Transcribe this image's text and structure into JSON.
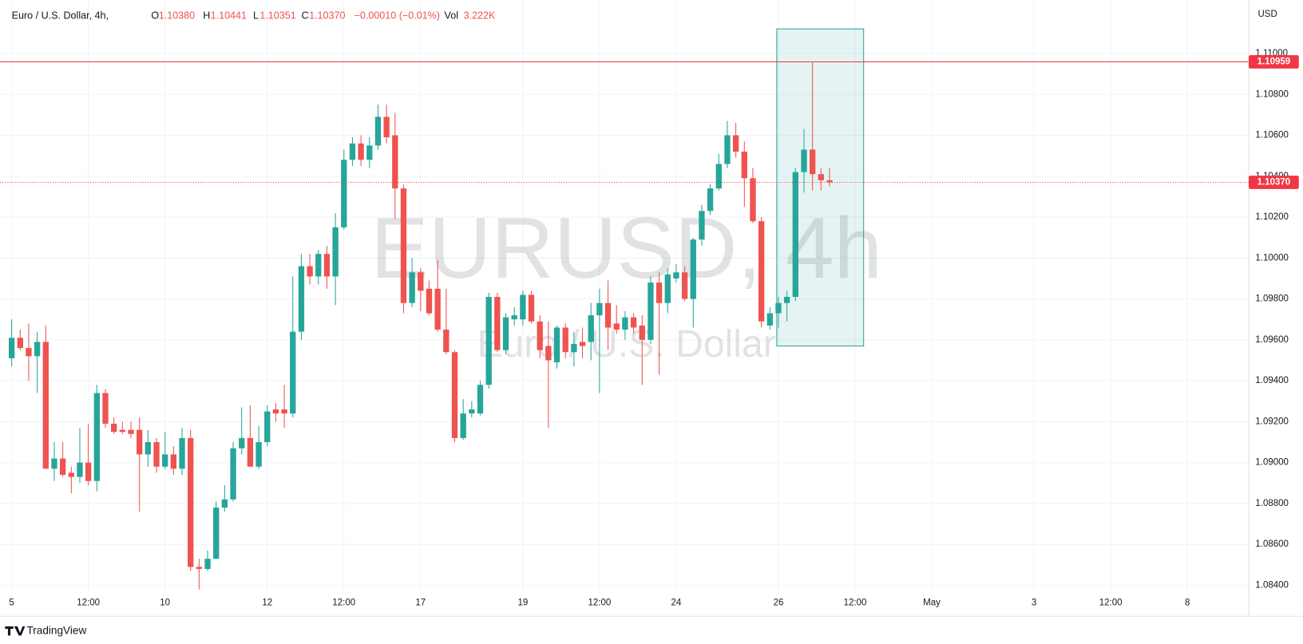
{
  "chart_data": {
    "type": "candlestick",
    "header": {
      "symbol": "Euro / U.S. Dollar, 4h,",
      "o_label": "O",
      "open": "1.10380",
      "h_label": "H",
      "high": "1.10441",
      "l_label": "L",
      "low": "1.10351",
      "c_label": "C",
      "close": "1.10370",
      "change": "−0.00010 (−0.01%)",
      "vol_label": "Vol",
      "volume": "3.222K"
    },
    "watermark": {
      "symbol": "EURUSD, 4h",
      "description": "Euro / U.S. Dollar"
    },
    "currency": "USD",
    "footer": "TradingView",
    "up_color": "#26a69a",
    "down_color": "#ef5350",
    "open": [
      1.0951,
      1.0961,
      1.0956,
      1.0952,
      1.0959,
      1.0897,
      1.0902,
      1.0895,
      1.0893,
      1.09,
      1.0891,
      1.0934,
      1.0919,
      1.0916,
      1.0916,
      1.0916,
      1.0904,
      1.091,
      1.0898,
      1.0904,
      1.0897,
      1.0912,
      1.0849,
      1.0848,
      1.0853,
      1.0878,
      1.0882,
      1.0907,
      1.0912,
      1.0898,
      1.091,
      1.0926,
      1.0926,
      1.0924,
      1.0964,
      1.0996,
      1.0991,
      1.1002,
      1.0991,
      1.1015,
      1.1048,
      1.1056,
      1.1048,
      1.1055,
      1.1069,
      1.106,
      1.1034,
      1.0978,
      1.0993,
      1.0985,
      1.0985,
      1.0965,
      1.0954,
      1.0912,
      1.0924,
      1.0924,
      1.0938,
      1.0981,
      1.0955,
      1.097,
      1.097,
      1.0982,
      1.0969,
      1.0957,
      1.0949,
      1.0966,
      1.0954,
      1.0959,
      1.0959,
      1.0972,
      1.0978,
      1.0968,
      1.0965,
      1.0971,
      1.0967,
      1.096,
      1.0988,
      1.0978,
      1.099,
      1.0993,
      1.098,
      1.1009,
      1.1023,
      1.1034,
      1.1046,
      1.106,
      1.1052,
      1.1039,
      1.1018,
      1.0967,
      1.0973,
      1.0978,
      1.0981,
      1.1042,
      1.1053,
      1.1041,
      1.1038
    ],
    "high": [
      1.097,
      1.0965,
      1.0968,
      1.0964,
      1.0967,
      1.091,
      1.091,
      1.0898,
      1.0917,
      1.0919,
      1.0938,
      1.0936,
      1.0922,
      1.092,
      1.092,
      1.0922,
      1.0916,
      1.0912,
      1.0915,
      1.0908,
      1.0917,
      1.0916,
      1.0853,
      1.0857,
      1.0881,
      1.0889,
      1.091,
      1.0927,
      1.0928,
      1.0918,
      1.0928,
      1.0929,
      1.0938,
      1.0991,
      1.1002,
      1.1002,
      1.1004,
      1.1006,
      1.1022,
      1.1053,
      1.1059,
      1.106,
      1.1059,
      1.1075,
      1.1075,
      1.1071,
      1.1036,
      1.1,
      1.0995,
      1.0989,
      1.0999,
      1.0985,
      1.0955,
      1.0931,
      1.093,
      1.094,
      1.0983,
      1.0983,
      1.0973,
      1.0976,
      1.0984,
      1.0984,
      1.0972,
      1.0969,
      1.0967,
      1.0968,
      1.0964,
      1.0966,
      1.0978,
      1.0985,
      1.0989,
      1.0977,
      1.0974,
      1.0973,
      1.0972,
      1.0991,
      1.0993,
      1.0995,
      1.0997,
      1.0996,
      1.101,
      1.1026,
      1.1036,
      1.1051,
      1.1067,
      1.1066,
      1.1057,
      1.1044,
      1.102,
      1.0976,
      1.0981,
      1.0984,
      1.1044,
      1.1063,
      1.10959,
      1.1044,
      1.10441
    ],
    "low": [
      1.0947,
      1.0955,
      1.094,
      1.0934,
      1.0897,
      1.0891,
      1.0893,
      1.0885,
      1.089,
      1.0889,
      1.0886,
      1.0917,
      1.0914,
      1.0914,
      1.0912,
      1.0876,
      1.0898,
      1.0895,
      1.0897,
      1.0894,
      1.0894,
      1.0847,
      1.0838,
      1.0847,
      1.0853,
      1.0876,
      1.0881,
      1.0904,
      1.0898,
      1.0897,
      1.0908,
      1.092,
      1.0917,
      1.0922,
      1.096,
      1.0987,
      1.0987,
      1.0985,
      1.0977,
      1.1014,
      1.1045,
      1.1045,
      1.1044,
      1.1053,
      1.1056,
      1.1019,
      1.0973,
      1.0976,
      1.0974,
      1.0972,
      1.0964,
      1.0953,
      1.091,
      1.0911,
      1.0922,
      1.0923,
      1.0936,
      1.0954,
      1.0953,
      1.0967,
      1.0967,
      1.0968,
      1.0951,
      1.0917,
      1.0946,
      1.0951,
      1.0947,
      1.0951,
      1.095,
      1.0934,
      1.0955,
      1.0963,
      1.096,
      1.0963,
      1.0938,
      1.0958,
      1.0943,
      1.0973,
      1.0988,
      1.0979,
      1.0966,
      1.1006,
      1.1021,
      1.1033,
      1.1044,
      1.1049,
      1.1025,
      1.1017,
      1.0966,
      1.0965,
      1.0966,
      1.0969,
      1.0979,
      1.1032,
      1.1033,
      1.1033,
      1.10351
    ],
    "close": [
      1.0961,
      1.0956,
      1.0952,
      1.0959,
      1.0897,
      1.0902,
      1.0894,
      1.0893,
      1.09,
      1.0891,
      1.0934,
      1.0919,
      1.0915,
      1.0915,
      1.0914,
      1.0904,
      1.091,
      1.0898,
      1.0904,
      1.0897,
      1.0912,
      1.0849,
      1.0848,
      1.0853,
      1.0878,
      1.0882,
      1.0907,
      1.0912,
      1.0898,
      1.091,
      1.0925,
      1.0924,
      1.0924,
      1.0964,
      1.0996,
      1.0991,
      1.1002,
      1.0991,
      1.1015,
      1.1048,
      1.1056,
      1.1048,
      1.1055,
      1.1069,
      1.1059,
      1.1034,
      1.0978,
      1.0993,
      1.0984,
      1.0973,
      1.0965,
      1.0954,
      1.0912,
      1.0924,
      1.0926,
      1.0938,
      1.0981,
      1.0955,
      1.0971,
      1.0972,
      1.0982,
      1.0969,
      1.0955,
      1.095,
      1.0966,
      1.0954,
      1.0958,
      1.0957,
      1.0972,
      1.0978,
      1.0966,
      1.0965,
      1.0971,
      1.0966,
      1.096,
      1.0988,
      1.0978,
      1.0992,
      1.0993,
      1.098,
      1.1009,
      1.1023,
      1.1034,
      1.1046,
      1.106,
      1.1052,
      1.1039,
      1.1018,
      1.0969,
      1.0973,
      1.0978,
      1.0981,
      1.1042,
      1.1053,
      1.1041,
      1.1038,
      1.1037
    ],
    "xlim": [
      -0.88,
      145.2
    ],
    "xticks": [
      {
        "value": 0,
        "label": "5"
      },
      {
        "value": 9,
        "label": "12:00"
      },
      {
        "value": 18,
        "label": "10"
      },
      {
        "value": 30,
        "label": "12"
      },
      {
        "value": 39,
        "label": "12:00"
      },
      {
        "value": 48,
        "label": "17"
      },
      {
        "value": 60,
        "label": "19"
      },
      {
        "value": 69,
        "label": "12:00"
      },
      {
        "value": 78,
        "label": "24"
      },
      {
        "value": 90,
        "label": "26"
      },
      {
        "value": 99,
        "label": "12:00"
      },
      {
        "value": 108,
        "label": "May"
      },
      {
        "value": 120,
        "label": "3"
      },
      {
        "value": 129,
        "label": "12:00"
      },
      {
        "value": 138,
        "label": "8"
      }
    ],
    "ylim": [
      1.08363,
      1.1124
    ],
    "yticks": [
      {
        "value": 1.084,
        "label": "1.08400"
      },
      {
        "value": 1.086,
        "label": "1.08600"
      },
      {
        "value": 1.088,
        "label": "1.08800"
      },
      {
        "value": 1.09,
        "label": "1.09000"
      },
      {
        "value": 1.092,
        "label": "1.09200"
      },
      {
        "value": 1.094,
        "label": "1.09400"
      },
      {
        "value": 1.096,
        "label": "1.09600"
      },
      {
        "value": 1.098,
        "label": "1.09800"
      },
      {
        "value": 1.1,
        "label": "1.10000"
      },
      {
        "value": 1.102,
        "label": "1.10200"
      },
      {
        "value": 1.104,
        "label": "1.10400"
      },
      {
        "value": 1.106,
        "label": "1.10600"
      },
      {
        "value": 1.108,
        "label": "1.10800"
      },
      {
        "value": 1.11,
        "label": "1.11000"
      }
    ],
    "grid": true,
    "price_lines": [
      {
        "value": 1.10959,
        "label": "1.10959",
        "style": "solid",
        "color": "#f23645"
      },
      {
        "value": 1.1037,
        "label": "1.10370",
        "style": "dotted",
        "color": "#f23645"
      }
    ],
    "highlight_box": {
      "x": [
        90,
        100
      ],
      "y": [
        1.0957,
        1.1112
      ],
      "color": "#26a69a"
    }
  }
}
